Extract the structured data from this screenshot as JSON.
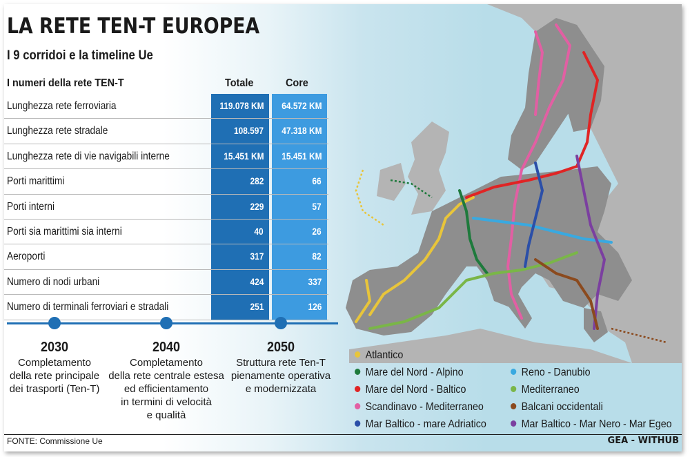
{
  "title": "LA RETE TEN-T EUROPEA",
  "subtitle": "I 9 corridoi e la timeline Ue",
  "table": {
    "header": {
      "label": "I numeri della rete TEN-T",
      "col1": "Totale",
      "col2": "Core"
    },
    "rows": [
      {
        "label": "Lunghezza rete ferroviaria",
        "totale": "119.078 KM",
        "core": "64.572 KM"
      },
      {
        "label": "Lunghezza rete stradale",
        "totale": "108.597 KM",
        "core": "47.318 KM"
      },
      {
        "label": "Lunghezza rete di vie navigabili interne",
        "totale": "15.451 KM",
        "core": "15.451 KM"
      },
      {
        "label": "Porti marittimi",
        "totale": "282",
        "core": "66"
      },
      {
        "label": "Porti interni",
        "totale": "229",
        "core": "57"
      },
      {
        "label": "Porti sia marittimi sia interni",
        "totale": "40",
        "core": "26"
      },
      {
        "label": "Aeroporti",
        "totale": "317",
        "core": "82"
      },
      {
        "label": "Numero di nodi urbani",
        "totale": "424",
        "core": "337"
      },
      {
        "label": "Numero di terminali ferroviari e stradali",
        "totale": "251",
        "core": "126"
      }
    ]
  },
  "timeline": [
    {
      "year": "2030",
      "lines": [
        "Completamento",
        "della rete principale",
        "dei trasporti (Ten-T)"
      ]
    },
    {
      "year": "2040",
      "lines": [
        "Completamento",
        "della rete centrale estesa",
        "ed efficientamento",
        "in termini di velocità",
        "e qualità"
      ]
    },
    {
      "year": "2050",
      "lines": [
        "Struttura rete Ten-T",
        "pienamente operativa",
        "e modernizzata"
      ]
    }
  ],
  "legend": [
    {
      "label": "Atlantico",
      "color": "#e8c53a"
    },
    {
      "label": "Mare del Nord - Alpino",
      "color": "#1e7a3c"
    },
    {
      "label": "Mare del Nord - Baltico",
      "color": "#e02424"
    },
    {
      "label": "Scandinavo - Mediterraneo",
      "color": "#e25fa3"
    },
    {
      "label": "Mar Baltico - mare Adriatico",
      "color": "#2b4fa8"
    },
    {
      "label": "Reno - Danubio",
      "color": "#39a9e0"
    },
    {
      "label": "Mediterraneo",
      "color": "#7ab648"
    },
    {
      "label": "Balcani occidentali",
      "color": "#8b4a1e"
    },
    {
      "label": "Mar Baltico - Mar Nero - Mar Egeo",
      "color": "#7b3fa0"
    }
  ],
  "colors": {
    "cell_dark": "#1f6fb4",
    "cell_light": "#3d9be0",
    "timeline": "#1f6fb4",
    "land": "#8e8e8e",
    "land_out": "#b4b4b4",
    "sea": "#b8dde9"
  },
  "source": "FONTE: Commissione Ue",
  "credit": "GEA - WITHUB"
}
